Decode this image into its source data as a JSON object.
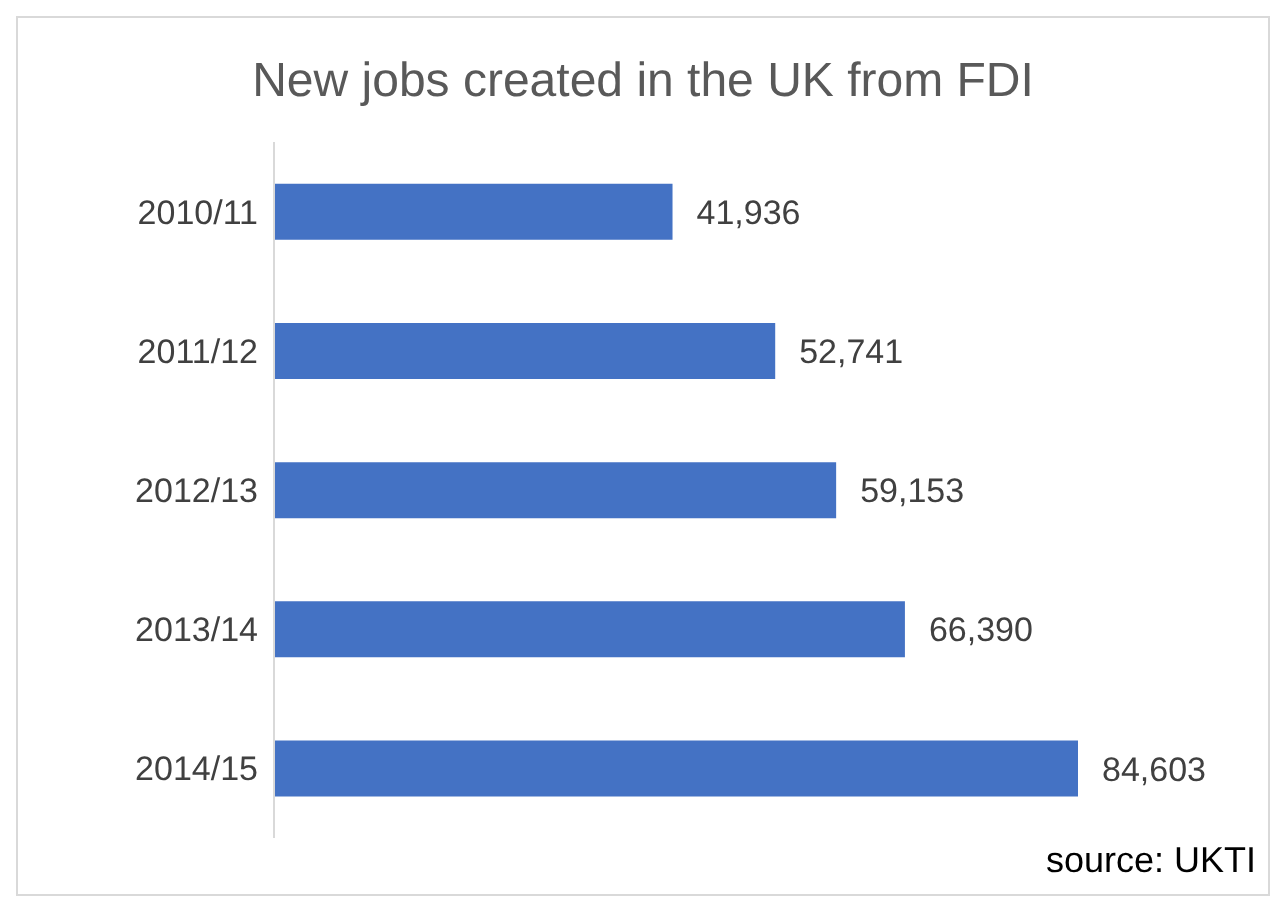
{
  "chart_data": {
    "type": "bar",
    "orientation": "horizontal",
    "title": "New jobs created in the UK from FDI",
    "categories": [
      "2010/11",
      "2011/12",
      "2012/13",
      "2013/14",
      "2014/15"
    ],
    "values": [
      41936,
      52741,
      59153,
      66390,
      84603
    ],
    "color": "#4472c4",
    "value_labels": [
      "41,936",
      "52,741",
      "59,153",
      "66,390",
      "84,603"
    ],
    "annotations": [
      "source: UKTI"
    ]
  }
}
